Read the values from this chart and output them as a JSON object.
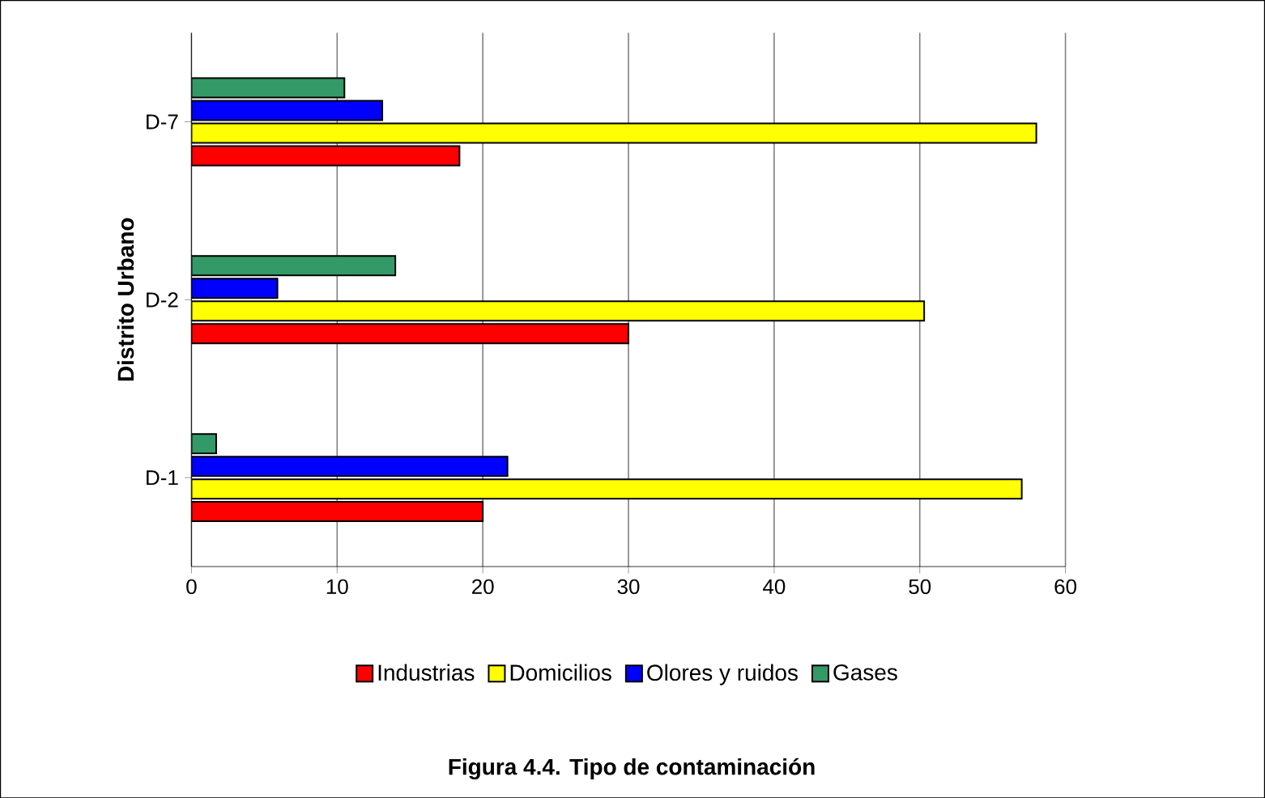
{
  "chart_data": {
    "type": "bar",
    "orientation": "horizontal",
    "title": "Figura 4.4. Tipo de contaminación",
    "ylabel": "Distrito Urbano",
    "categories": [
      "D-7",
      "D-2",
      "D-1"
    ],
    "series": [
      {
        "name": "Industrias",
        "color": "#ff0000",
        "values": [
          18.4,
          30.0,
          20.0
        ]
      },
      {
        "name": "Domicilios",
        "color": "#ffff00",
        "values": [
          58.0,
          50.3,
          57.0
        ]
      },
      {
        "name": "Olores y ruidos",
        "color": "#0000ff",
        "values": [
          13.1,
          5.9,
          21.7
        ]
      },
      {
        "name": "Gases",
        "color": "#339966",
        "values": [
          10.5,
          14.0,
          1.7
        ]
      }
    ],
    "xlim": [
      0,
      60
    ],
    "xticks": [
      0,
      10,
      20,
      30,
      40,
      50,
      60
    ],
    "grid": "x",
    "legend": "bottom"
  }
}
